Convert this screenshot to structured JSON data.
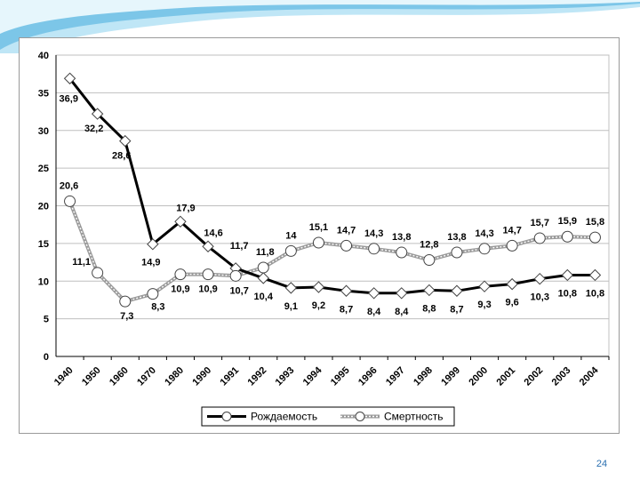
{
  "slide": {
    "page_number": "24"
  },
  "colors": {
    "births": "#000000",
    "deaths": "#9a9a9a",
    "grid": "#bfbfbf",
    "accent": "#7cc6e8"
  },
  "chart_data": {
    "type": "line",
    "title": "",
    "xlabel": "",
    "ylabel": "",
    "ylim": [
      0,
      40
    ],
    "yticks": [
      "0",
      "5",
      "10",
      "15",
      "20",
      "25",
      "30",
      "35",
      "40"
    ],
    "categories": [
      "1940",
      "1950",
      "1960",
      "1970",
      "1980",
      "1990",
      "1991",
      "1992",
      "1993",
      "1994",
      "1995",
      "1996",
      "1997",
      "1998",
      "1999",
      "2000",
      "2001",
      "2002",
      "2003",
      "2004"
    ],
    "grid": true,
    "legend_position": "bottom",
    "series": [
      {
        "name": "Рождаемость",
        "values": [
          36.9,
          32.2,
          28.6,
          14.9,
          17.9,
          14.6,
          11.7,
          10.4,
          9.1,
          9.2,
          8.7,
          8.4,
          8.4,
          8.8,
          8.7,
          9.3,
          9.6,
          10.3,
          10.8,
          10.8
        ],
        "labels": [
          "36,9",
          "32,2",
          "28,6",
          "14,9",
          "17,9",
          "14,6",
          "11,7",
          "10,4",
          "9,1",
          "9,2",
          "8,7",
          "8,4",
          "8,4",
          "8,8",
          "8,7",
          "9,3",
          "9,6",
          "10,3",
          "10,8",
          "10,8"
        ]
      },
      {
        "name": "Смертность",
        "values": [
          20.6,
          11.1,
          7.3,
          8.3,
          10.9,
          10.9,
          10.7,
          11.8,
          14,
          15.1,
          14.7,
          14.3,
          13.8,
          12.8,
          13.8,
          14.3,
          14.7,
          15.7,
          15.9,
          15.8
        ],
        "labels": [
          "20,6",
          "11,1",
          "7,3",
          "8,3",
          "10,9",
          "10,9",
          "10,7",
          "11,8",
          "14",
          "15,1",
          "14,7",
          "14,3",
          "13,8",
          "12,8",
          "13,8",
          "14,3",
          "14,7",
          "15,7",
          "15,9",
          "15,8"
        ]
      }
    ]
  }
}
